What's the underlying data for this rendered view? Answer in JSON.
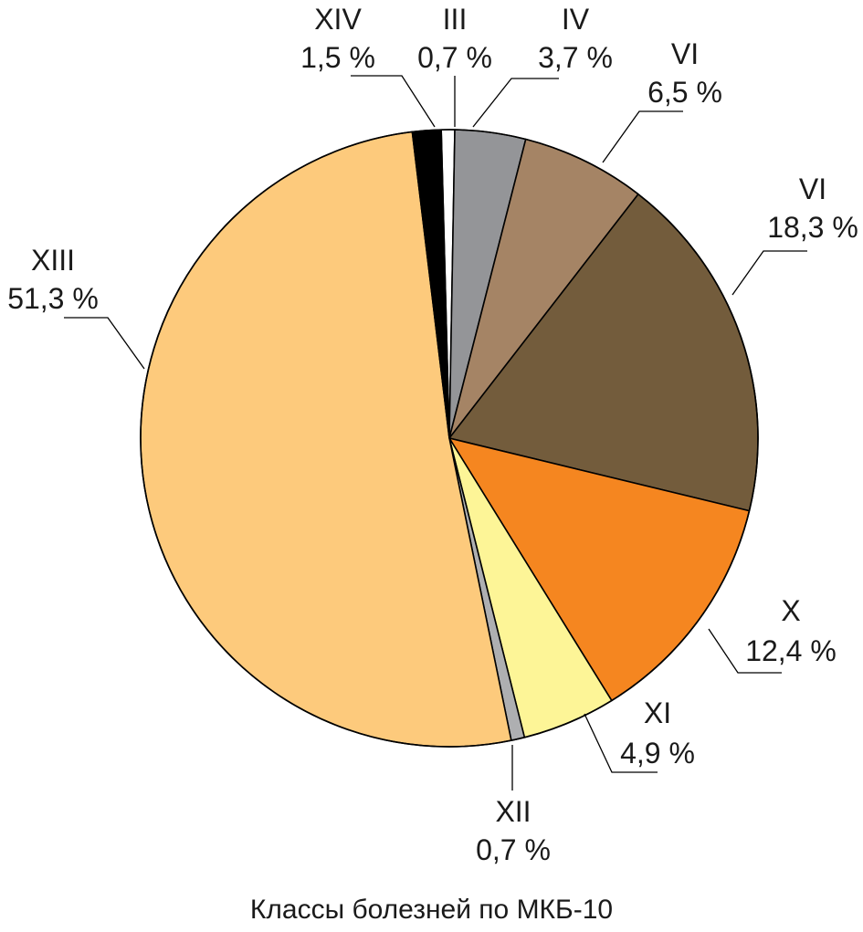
{
  "chart_data": {
    "type": "pie",
    "title": "",
    "caption": "Классы болезней по МКБ-10",
    "legend": "none",
    "slices": [
      {
        "label": "III",
        "value": 0.7,
        "value_label": "0,7 %",
        "color": "#ffffff"
      },
      {
        "label": "IV",
        "value": 3.7,
        "value_label": "3,7 %",
        "color": "#949598"
      },
      {
        "label": "VI",
        "value": 6.5,
        "value_label": "6,5 %",
        "color": "#a58465"
      },
      {
        "label": "VI",
        "value": 18.3,
        "value_label": "18,3 %",
        "color": "#735c3c"
      },
      {
        "label": "X",
        "value": 12.4,
        "value_label": "12,4 %",
        "color": "#f58620"
      },
      {
        "label": "XI",
        "value": 4.9,
        "value_label": "4,9 %",
        "color": "#fdf597"
      },
      {
        "label": "XII",
        "value": 0.7,
        "value_label": "0,7 %",
        "color": "#aeafb1"
      },
      {
        "label": "XIII",
        "value": 51.3,
        "value_label": "51,3 %",
        "color": "#fdca7c"
      },
      {
        "label": "XIV",
        "value": 1.5,
        "value_label": "1,5 %",
        "color": "#000000"
      }
    ]
  }
}
